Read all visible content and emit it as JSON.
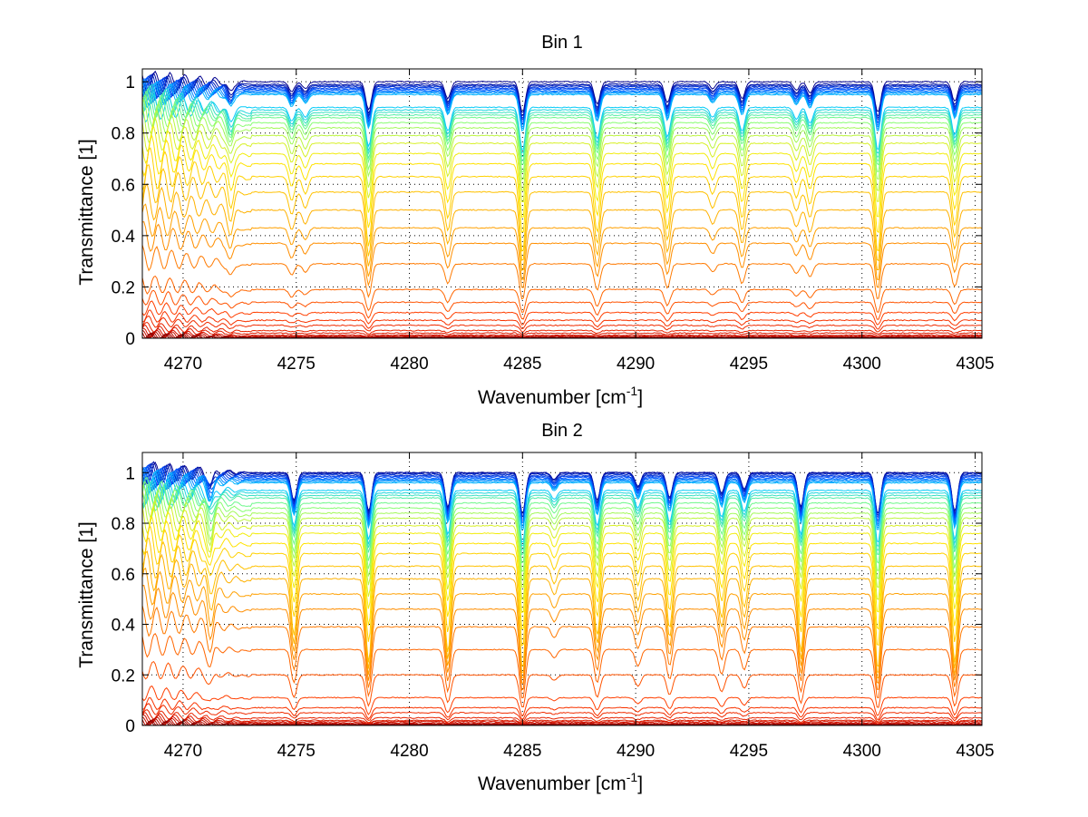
{
  "chart_data": [
    {
      "type": "line",
      "title": "Bin 1",
      "xlabel": "Wavenumber [cm",
      "xlabel_sup": "-1",
      "xlabel_end": "]",
      "ylabel": "Transmittance [1]",
      "xlim": [
        4268.2,
        4305.3
      ],
      "ylim": [
        0,
        1.05
      ],
      "xticks": [
        4270,
        4275,
        4280,
        4285,
        4290,
        4295,
        4300,
        4305
      ],
      "xtick_labels": [
        "4270",
        "4275",
        "4280",
        "4285",
        "4290",
        "4295",
        "4300",
        "4305"
      ],
      "yticks": [
        0,
        0.2,
        0.4,
        0.6,
        0.8,
        1
      ],
      "ytick_labels": [
        "0",
        "0.2",
        "0.4",
        "0.6",
        "0.8",
        "1"
      ],
      "grid": "dotted",
      "series_count": 40,
      "baseline_levels": [
        1.0,
        0.99,
        0.985,
        0.98,
        0.975,
        0.97,
        0.965,
        0.96,
        0.955,
        0.95,
        0.9,
        0.89,
        0.88,
        0.87,
        0.86,
        0.84,
        0.82,
        0.79,
        0.76,
        0.72,
        0.68,
        0.63,
        0.57,
        0.5,
        0.43,
        0.37,
        0.29,
        0.19,
        0.14,
        0.1,
        0.07,
        0.05,
        0.03,
        0.02,
        0.012,
        0.008,
        0.005,
        0.003,
        0.002,
        0.001
      ],
      "absorption_lines": [
        {
          "x": 4272.1,
          "depth": 0.08
        },
        {
          "x": 4274.8,
          "depth": 0.07
        },
        {
          "x": 4275.4,
          "depth": 0.05
        },
        {
          "x": 4278.2,
          "depth": 0.2
        },
        {
          "x": 4281.7,
          "depth": 0.12
        },
        {
          "x": 4285.0,
          "depth": 0.22
        },
        {
          "x": 4288.3,
          "depth": 0.16
        },
        {
          "x": 4291.4,
          "depth": 0.15
        },
        {
          "x": 4293.4,
          "depth": 0.05
        },
        {
          "x": 4294.7,
          "depth": 0.12
        },
        {
          "x": 4297.1,
          "depth": 0.06
        },
        {
          "x": 4297.7,
          "depth": 0.08
        },
        {
          "x": 4300.7,
          "depth": 0.22
        },
        {
          "x": 4304.1,
          "depth": 0.14
        }
      ],
      "colormap": [
        "#00008f",
        "#0050ff",
        "#00c8ff",
        "#7dff7a",
        "#ffea00",
        "#ff9a00",
        "#ff3a00",
        "#d41300",
        "#8a0000"
      ]
    },
    {
      "type": "line",
      "title": "Bin 2",
      "xlabel": "Wavenumber [cm",
      "xlabel_sup": "-1",
      "xlabel_end": "]",
      "ylabel": "Transmittance [1]",
      "xlim": [
        4268.2,
        4305.3
      ],
      "ylim": [
        0,
        1.08
      ],
      "xticks": [
        4270,
        4275,
        4280,
        4285,
        4290,
        4295,
        4300,
        4305
      ],
      "xtick_labels": [
        "4270",
        "4275",
        "4280",
        "4285",
        "4290",
        "4295",
        "4300",
        "4305"
      ],
      "yticks": [
        0,
        0.2,
        0.4,
        0.6,
        0.8,
        1
      ],
      "ytick_labels": [
        "0",
        "0.2",
        "0.4",
        "0.6",
        "0.8",
        "1"
      ],
      "grid": "dotted",
      "series_count": 40,
      "baseline_levels": [
        1.0,
        1.0,
        0.995,
        0.99,
        0.985,
        0.98,
        0.975,
        0.97,
        0.965,
        0.96,
        0.93,
        0.92,
        0.91,
        0.9,
        0.88,
        0.86,
        0.84,
        0.82,
        0.79,
        0.76,
        0.72,
        0.68,
        0.63,
        0.58,
        0.52,
        0.46,
        0.39,
        0.3,
        0.2,
        0.11,
        0.07,
        0.05,
        0.03,
        0.02,
        0.015,
        0.01,
        0.006,
        0.004,
        0.002,
        0.001
      ],
      "absorption_lines": [
        {
          "x": 4271.2,
          "depth": 0.1
        },
        {
          "x": 4274.9,
          "depth": 0.2
        },
        {
          "x": 4278.2,
          "depth": 0.28
        },
        {
          "x": 4281.7,
          "depth": 0.25
        },
        {
          "x": 4285.0,
          "depth": 0.3
        },
        {
          "x": 4286.4,
          "depth": 0.05
        },
        {
          "x": 4288.3,
          "depth": 0.2
        },
        {
          "x": 4290.1,
          "depth": 0.1
        },
        {
          "x": 4291.5,
          "depth": 0.18
        },
        {
          "x": 4293.8,
          "depth": 0.15
        },
        {
          "x": 4294.8,
          "depth": 0.12
        },
        {
          "x": 4297.3,
          "depth": 0.25
        },
        {
          "x": 4300.7,
          "depth": 0.3
        },
        {
          "x": 4304.1,
          "depth": 0.28
        }
      ],
      "colormap": [
        "#00008f",
        "#0050ff",
        "#00c8ff",
        "#7dff7a",
        "#ffea00",
        "#ff9a00",
        "#ff3a00",
        "#d41300",
        "#8a0000"
      ]
    }
  ]
}
